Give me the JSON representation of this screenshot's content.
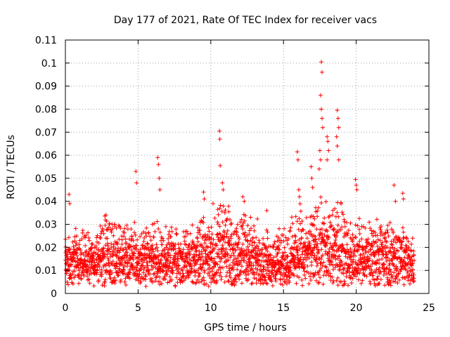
{
  "chart_data": {
    "type": "scatter",
    "title": "Day 177 of 2021, Rate Of TEC Index for receiver vacs",
    "xlabel": "GPS time / hours",
    "ylabel": "ROTI / TECUs",
    "xlim": [
      0,
      25
    ],
    "ylim": [
      0,
      0.11
    ],
    "xticks": [
      0,
      5,
      10,
      15,
      20,
      25
    ],
    "xtick_labels": [
      "0",
      "5",
      "10",
      "15",
      "20",
      "25"
    ],
    "yticks": [
      0,
      0.01,
      0.02,
      0.03,
      0.04,
      0.05,
      0.06,
      0.07,
      0.08,
      0.09,
      0.1,
      0.11
    ],
    "ytick_labels": [
      "0",
      "0.01",
      "0.02",
      "0.03",
      "0.04",
      "0.05",
      "0.06",
      "0.07",
      "0.08",
      "0.09",
      "0.1",
      "0.11"
    ],
    "grid": true,
    "marker": "+",
    "color": "#ff0000",
    "time_range_hours": [
      0,
      24
    ],
    "baseline_roti_range": [
      0.003,
      0.03
    ],
    "notable_points": [
      {
        "x": 0.25,
        "y": 0.043
      },
      {
        "x": 0.3,
        "y": 0.039
      },
      {
        "x": 4.85,
        "y": 0.053
      },
      {
        "x": 4.9,
        "y": 0.048
      },
      {
        "x": 6.35,
        "y": 0.059
      },
      {
        "x": 6.4,
        "y": 0.056
      },
      {
        "x": 6.45,
        "y": 0.05
      },
      {
        "x": 6.5,
        "y": 0.045
      },
      {
        "x": 9.5,
        "y": 0.044
      },
      {
        "x": 9.55,
        "y": 0.041
      },
      {
        "x": 10.6,
        "y": 0.0705
      },
      {
        "x": 10.62,
        "y": 0.067
      },
      {
        "x": 10.65,
        "y": 0.0555
      },
      {
        "x": 10.8,
        "y": 0.048
      },
      {
        "x": 10.85,
        "y": 0.045
      },
      {
        "x": 12.2,
        "y": 0.042
      },
      {
        "x": 12.3,
        "y": 0.04
      },
      {
        "x": 13.85,
        "y": 0.036
      },
      {
        "x": 15.95,
        "y": 0.0615
      },
      {
        "x": 16.0,
        "y": 0.058
      },
      {
        "x": 16.05,
        "y": 0.045
      },
      {
        "x": 16.1,
        "y": 0.042
      },
      {
        "x": 16.9,
        "y": 0.055
      },
      {
        "x": 16.95,
        "y": 0.05
      },
      {
        "x": 17.0,
        "y": 0.046
      },
      {
        "x": 17.6,
        "y": 0.1005
      },
      {
        "x": 17.65,
        "y": 0.096
      },
      {
        "x": 17.55,
        "y": 0.086
      },
      {
        "x": 17.6,
        "y": 0.08
      },
      {
        "x": 17.65,
        "y": 0.076
      },
      {
        "x": 17.7,
        "y": 0.072
      },
      {
        "x": 17.5,
        "y": 0.062
      },
      {
        "x": 17.55,
        "y": 0.058
      },
      {
        "x": 17.45,
        "y": 0.054
      },
      {
        "x": 18.0,
        "y": 0.068
      },
      {
        "x": 18.05,
        "y": 0.066
      },
      {
        "x": 18.1,
        "y": 0.062
      },
      {
        "x": 18.0,
        "y": 0.058
      },
      {
        "x": 18.7,
        "y": 0.0795
      },
      {
        "x": 18.75,
        "y": 0.076
      },
      {
        "x": 18.8,
        "y": 0.072
      },
      {
        "x": 18.65,
        "y": 0.068
      },
      {
        "x": 18.7,
        "y": 0.064
      },
      {
        "x": 18.8,
        "y": 0.058
      },
      {
        "x": 19.95,
        "y": 0.0495
      },
      {
        "x": 20.0,
        "y": 0.047
      },
      {
        "x": 20.05,
        "y": 0.045
      },
      {
        "x": 22.6,
        "y": 0.047
      },
      {
        "x": 22.7,
        "y": 0.04
      },
      {
        "x": 23.2,
        "y": 0.0435
      },
      {
        "x": 23.25,
        "y": 0.041
      }
    ],
    "bursts": [
      {
        "center": 0.3,
        "width": 0.4,
        "peak": 0.03
      },
      {
        "center": 1.0,
        "width": 0.5,
        "peak": 0.03
      },
      {
        "center": 2.9,
        "width": 0.5,
        "peak": 0.04
      },
      {
        "center": 4.5,
        "width": 0.6,
        "peak": 0.033
      },
      {
        "center": 6.4,
        "width": 0.7,
        "peak": 0.035
      },
      {
        "center": 9.5,
        "width": 0.6,
        "peak": 0.037
      },
      {
        "center": 10.7,
        "width": 0.8,
        "peak": 0.045
      },
      {
        "center": 12.4,
        "width": 0.8,
        "peak": 0.038
      },
      {
        "center": 13.8,
        "width": 0.6,
        "peak": 0.03
      },
      {
        "center": 16.0,
        "width": 0.5,
        "peak": 0.04
      },
      {
        "center": 17.5,
        "width": 1.0,
        "peak": 0.045
      },
      {
        "center": 18.7,
        "width": 0.8,
        "peak": 0.045
      },
      {
        "center": 20.0,
        "width": 0.6,
        "peak": 0.035
      },
      {
        "center": 21.5,
        "width": 1.0,
        "peak": 0.035
      },
      {
        "center": 23.0,
        "width": 0.6,
        "peak": 0.035
      }
    ]
  }
}
